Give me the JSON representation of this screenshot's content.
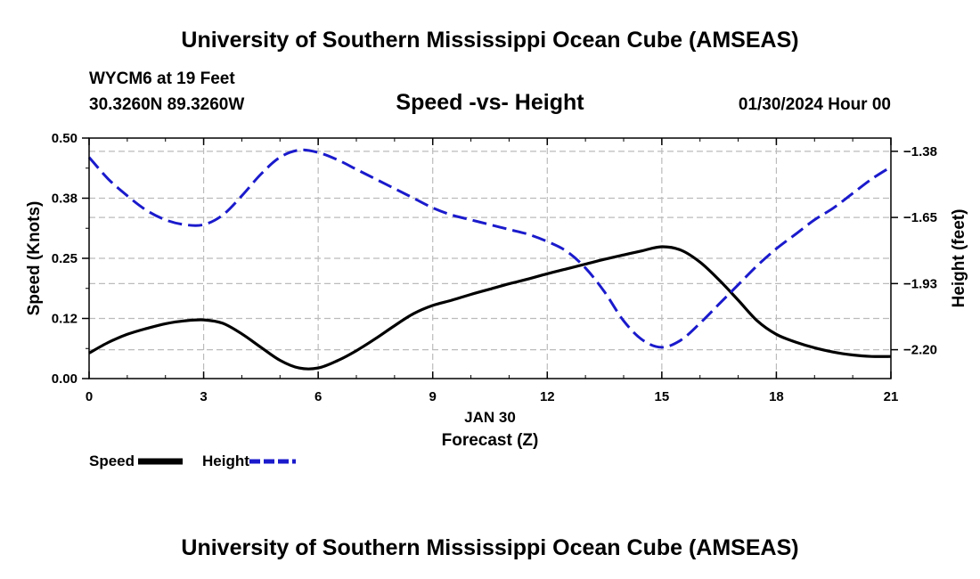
{
  "header": {
    "title": "University of Southern Mississippi Ocean Cube (AMSEAS)",
    "station": "WYCM6 at 19 Feet",
    "coords": "30.3260N  89.3260W",
    "subtitle": "Speed -vs- Height",
    "datetime": "01/30/2024 Hour 00"
  },
  "footer": {
    "title": "University of Southern Mississippi Ocean Cube (AMSEAS)"
  },
  "legend": {
    "speed_label": "Speed",
    "height_label": "Height"
  },
  "colors": {
    "speed": "#000000",
    "height": "#1a1acc",
    "grid": "#bbbbbb"
  },
  "chart_data": {
    "type": "line",
    "title": "Speed -vs- Height",
    "xlabel": "Forecast (Z)",
    "xlabel_date": "JAN 30",
    "ylabel_left": "Speed (Knots)",
    "ylabel_right": "Height (feet)",
    "xlim": [
      0,
      21
    ],
    "ylim_left": [
      0,
      0.5
    ],
    "ylim_right": [
      -2.32,
      -1.32
    ],
    "x_ticks": [
      0,
      3,
      6,
      9,
      12,
      15,
      18,
      21
    ],
    "x_tick_labels": [
      "0",
      "3",
      "6",
      "9",
      "12",
      "15",
      "18",
      "21"
    ],
    "y_left_ticks": [
      0,
      0.125,
      0.25,
      0.375,
      0.5
    ],
    "y_left_tick_labels": [
      "0.00",
      "0.12",
      "0.25",
      "0.38",
      "0.50"
    ],
    "y_right_ticks": [
      -2.2,
      -1.925,
      -1.65,
      -1.375
    ],
    "y_right_tick_labels": [
      "-2.20",
      "-1.93",
      "-1.65",
      "-1.38"
    ],
    "series": [
      {
        "name": "Speed",
        "axis": "left",
        "style": "solid",
        "x": [
          0,
          0.5,
          1,
          1.5,
          2,
          2.5,
          3,
          3.5,
          4,
          4.5,
          5,
          5.5,
          6,
          6.5,
          7,
          7.5,
          8,
          8.5,
          9,
          9.5,
          10,
          10.5,
          11,
          11.5,
          12,
          12.5,
          13,
          13.5,
          14,
          14.5,
          15,
          15.5,
          16,
          16.5,
          17,
          17.5,
          18,
          18.5,
          19,
          19.5,
          20,
          20.5,
          21
        ],
        "values": [
          0.053,
          0.075,
          0.092,
          0.104,
          0.114,
          0.12,
          0.122,
          0.115,
          0.093,
          0.065,
          0.038,
          0.022,
          0.022,
          0.037,
          0.058,
          0.083,
          0.11,
          0.135,
          0.152,
          0.163,
          0.175,
          0.186,
          0.197,
          0.207,
          0.218,
          0.228,
          0.238,
          0.248,
          0.257,
          0.266,
          0.274,
          0.267,
          0.242,
          0.205,
          0.163,
          0.12,
          0.092,
          0.076,
          0.064,
          0.055,
          0.049,
          0.046,
          0.046
        ]
      },
      {
        "name": "Height",
        "axis": "right",
        "style": "dashed",
        "x": [
          0,
          0.5,
          1,
          1.5,
          2,
          2.5,
          3,
          3.5,
          4,
          4.5,
          5,
          5.5,
          6,
          6.5,
          7,
          7.5,
          8,
          8.5,
          9,
          9.5,
          10,
          10.5,
          11,
          11.5,
          12,
          12.5,
          13,
          13.5,
          14,
          14.5,
          15,
          15.5,
          16,
          16.5,
          17,
          17.5,
          18,
          18.5,
          19,
          19.5,
          20,
          20.5,
          21
        ],
        "values": [
          -1.4,
          -1.49,
          -1.56,
          -1.62,
          -1.66,
          -1.68,
          -1.68,
          -1.64,
          -1.56,
          -1.47,
          -1.4,
          -1.37,
          -1.38,
          -1.41,
          -1.45,
          -1.49,
          -1.53,
          -1.57,
          -1.61,
          -1.64,
          -1.66,
          -1.68,
          -1.7,
          -1.72,
          -1.75,
          -1.79,
          -1.86,
          -1.96,
          -2.08,
          -2.16,
          -2.19,
          -2.16,
          -2.09,
          -2.01,
          -1.93,
          -1.85,
          -1.78,
          -1.72,
          -1.66,
          -1.61,
          -1.55,
          -1.49,
          -1.44
        ]
      }
    ]
  }
}
